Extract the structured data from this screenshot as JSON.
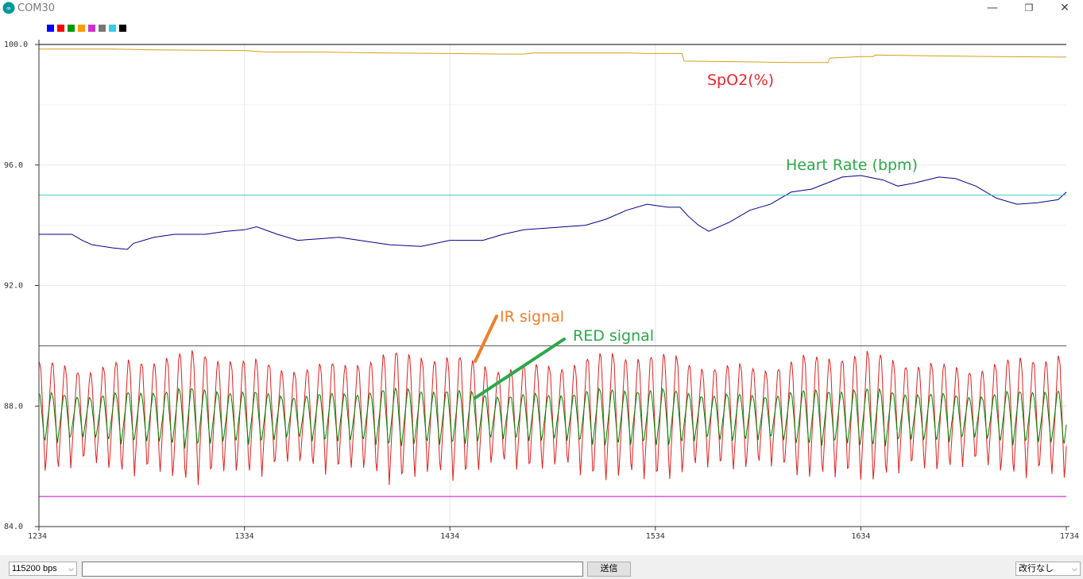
{
  "window": {
    "title": "COM30",
    "controls": {
      "minimize": "—",
      "maximize": "❐",
      "close": "✕"
    }
  },
  "legend": {
    "swatches": [
      "#0000ff",
      "#ff0000",
      "#009900",
      "#ff9900",
      "#cc33cc",
      "#777777",
      "#33ccee",
      "#000000"
    ]
  },
  "chart_data": {
    "type": "line",
    "xlim": [
      1234,
      1734
    ],
    "ylim": [
      84.0,
      100.0
    ],
    "x_ticks": [
      "1234",
      "1334",
      "1434",
      "1534",
      "1634",
      "1734"
    ],
    "y_ticks": [
      "84.0",
      "88.0",
      "92.0",
      "96.0",
      "100.0"
    ],
    "grid": true,
    "annotations": [
      {
        "text": "SpO2(%)",
        "color": "#e8262e"
      },
      {
        "text": "Heart Rate (bpm)",
        "color": "#2ca84a"
      },
      {
        "text": "IR signal",
        "color": "#f07f2a"
      },
      {
        "text": "RED signal",
        "color": "#2ca84a"
      }
    ],
    "series": [
      {
        "color": "#d4a017",
        "points": [
          [
            1234,
            99.85
          ],
          [
            1270,
            99.85
          ],
          [
            1290,
            99.82
          ],
          [
            1334,
            99.8
          ],
          [
            1345,
            99.75
          ],
          [
            1370,
            99.75
          ],
          [
            1400,
            99.72
          ],
          [
            1434,
            99.7
          ],
          [
            1460,
            99.68
          ],
          [
            1470,
            99.68
          ],
          [
            1475,
            99.72
          ],
          [
            1520,
            99.72
          ],
          [
            1530,
            99.7
          ],
          [
            1547,
            99.7
          ],
          [
            1548,
            99.45
          ],
          [
            1583,
            99.42
          ],
          [
            1600,
            99.4
          ],
          [
            1618,
            99.4
          ],
          [
            1619,
            99.55
          ],
          [
            1634,
            99.6
          ],
          [
            1640,
            99.6
          ],
          [
            1641,
            99.65
          ],
          [
            1672,
            99.62
          ],
          [
            1700,
            99.6
          ],
          [
            1734,
            99.58
          ]
        ]
      },
      {
        "color": "#00008b",
        "points": [
          [
            1234,
            93.7
          ],
          [
            1250,
            93.7
          ],
          [
            1255,
            93.5
          ],
          [
            1260,
            93.35
          ],
          [
            1270,
            93.25
          ],
          [
            1277,
            93.2
          ],
          [
            1280,
            93.4
          ],
          [
            1290,
            93.6
          ],
          [
            1300,
            93.7
          ],
          [
            1315,
            93.7
          ],
          [
            1325,
            93.8
          ],
          [
            1334,
            93.85
          ],
          [
            1340,
            93.95
          ],
          [
            1350,
            93.7
          ],
          [
            1360,
            93.5
          ],
          [
            1370,
            93.55
          ],
          [
            1380,
            93.6
          ],
          [
            1395,
            93.45
          ],
          [
            1405,
            93.35
          ],
          [
            1420,
            93.3
          ],
          [
            1434,
            93.5
          ],
          [
            1450,
            93.5
          ],
          [
            1460,
            93.7
          ],
          [
            1470,
            93.85
          ],
          [
            1480,
            93.9
          ],
          [
            1490,
            93.95
          ],
          [
            1500,
            94.0
          ],
          [
            1510,
            94.2
          ],
          [
            1520,
            94.5
          ],
          [
            1530,
            94.7
          ],
          [
            1540,
            94.6
          ],
          [
            1546,
            94.6
          ],
          [
            1550,
            94.3
          ],
          [
            1555,
            94.0
          ],
          [
            1560,
            93.8
          ],
          [
            1570,
            94.1
          ],
          [
            1580,
            94.5
          ],
          [
            1590,
            94.7
          ],
          [
            1600,
            95.1
          ],
          [
            1610,
            95.2
          ],
          [
            1625,
            95.6
          ],
          [
            1634,
            95.65
          ],
          [
            1645,
            95.5
          ],
          [
            1652,
            95.3
          ],
          [
            1660,
            95.4
          ],
          [
            1672,
            95.6
          ],
          [
            1680,
            95.55
          ],
          [
            1690,
            95.3
          ],
          [
            1700,
            94.9
          ],
          [
            1710,
            94.7
          ],
          [
            1720,
            94.75
          ],
          [
            1730,
            94.85
          ],
          [
            1734,
            95.1
          ]
        ]
      },
      {
        "color": "#33cccc",
        "points": [
          [
            1234,
            95.0
          ],
          [
            1734,
            95.0
          ]
        ]
      },
      {
        "color": "#000000",
        "points": [
          [
            1234,
            100.0
          ],
          [
            1734,
            100.0
          ]
        ]
      },
      {
        "color": "#555555",
        "points": [
          [
            1234,
            90.0
          ],
          [
            1734,
            90.0
          ]
        ]
      },
      {
        "color": "#cc00cc",
        "points": [
          [
            1234,
            85.0
          ],
          [
            1734,
            85.0
          ]
        ]
      },
      {
        "color": "#e02020",
        "wave": {
          "period": 6.2,
          "center": 87.6,
          "amplitude": 1.9,
          "x_start": 1234,
          "x_end": 1734
        }
      },
      {
        "color": "#008000",
        "wave": {
          "period": 6.2,
          "center": 87.6,
          "amplitude": 0.85,
          "x_start": 1234,
          "x_end": 1734
        }
      }
    ]
  },
  "footer": {
    "baud": "115200 bps",
    "send_label": "送信",
    "send_input_value": "",
    "line_ending": "改行なし"
  }
}
